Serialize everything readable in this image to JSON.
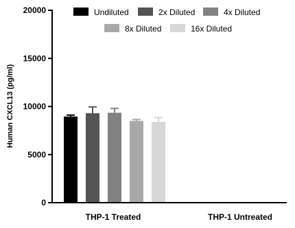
{
  "chart_data": {
    "type": "bar",
    "ylabel": "Human CXCL13 (pg/ml)",
    "ylim": [
      0,
      20000
    ],
    "yticks": [
      0,
      5000,
      10000,
      15000,
      20000
    ],
    "ytick_labels": [
      "0",
      "5000",
      "10000",
      "15000",
      "20000"
    ],
    "categories": [
      "THP-1 Treated",
      "THP-1 Untreated"
    ],
    "legend_position": "top",
    "error_bars": true,
    "series": [
      {
        "name": "Undiluted",
        "color": "#000000",
        "values": [
          8950,
          0
        ],
        "errors": [
          150,
          0
        ]
      },
      {
        "name": "2x Diluted",
        "color": "#545454",
        "values": [
          9300,
          0
        ],
        "errors": [
          650,
          0
        ]
      },
      {
        "name": "4x Diluted",
        "color": "#828282",
        "values": [
          9350,
          0
        ],
        "errors": [
          450,
          0
        ]
      },
      {
        "name": "8x Diluted",
        "color": "#a9a9a9",
        "values": [
          8500,
          0
        ],
        "errors": [
          150,
          0
        ]
      },
      {
        "name": "16x Diluted",
        "color": "#d7d7d7",
        "values": [
          8400,
          0
        ],
        "errors": [
          450,
          0
        ]
      }
    ]
  }
}
